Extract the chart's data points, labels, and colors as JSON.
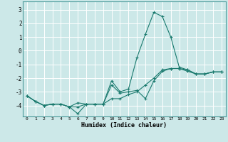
{
  "xlabel": "Humidex (Indice chaleur)",
  "bg_color": "#cce8e8",
  "grid_color": "#ffffff",
  "line_color": "#1a7a6e",
  "xlim": [
    -0.5,
    23.5
  ],
  "ylim": [
    -4.8,
    3.6
  ],
  "xticks": [
    0,
    1,
    2,
    3,
    4,
    5,
    6,
    7,
    8,
    9,
    10,
    11,
    12,
    13,
    14,
    15,
    16,
    17,
    18,
    19,
    20,
    21,
    22,
    23
  ],
  "yticks": [
    -4,
    -3,
    -2,
    -1,
    0,
    1,
    2,
    3
  ],
  "series": [
    [
      -3.3,
      -3.7,
      -4.0,
      -3.9,
      -3.9,
      -4.1,
      -4.6,
      -3.9,
      -3.9,
      -3.9,
      -2.2,
      -3.0,
      -2.8,
      -0.5,
      1.2,
      2.8,
      2.5,
      1.0,
      -1.2,
      -1.4,
      -1.7,
      -1.7,
      -1.55,
      -1.55
    ],
    [
      -3.3,
      -3.7,
      -4.0,
      -3.9,
      -3.9,
      -4.1,
      -3.8,
      -3.9,
      -3.9,
      -3.9,
      -2.5,
      -3.1,
      -3.0,
      -2.9,
      -3.5,
      -2.2,
      -1.5,
      -1.3,
      -1.3,
      -1.4,
      -1.7,
      -1.7,
      -1.55,
      -1.55
    ],
    [
      -3.3,
      -3.7,
      -4.0,
      -3.9,
      -3.9,
      -4.1,
      -4.1,
      -3.9,
      -3.9,
      -3.9,
      -3.5,
      -3.5,
      -3.2,
      -3.0,
      -2.5,
      -2.0,
      -1.4,
      -1.3,
      -1.3,
      -1.5,
      -1.7,
      -1.7,
      -1.55,
      -1.55
    ]
  ]
}
